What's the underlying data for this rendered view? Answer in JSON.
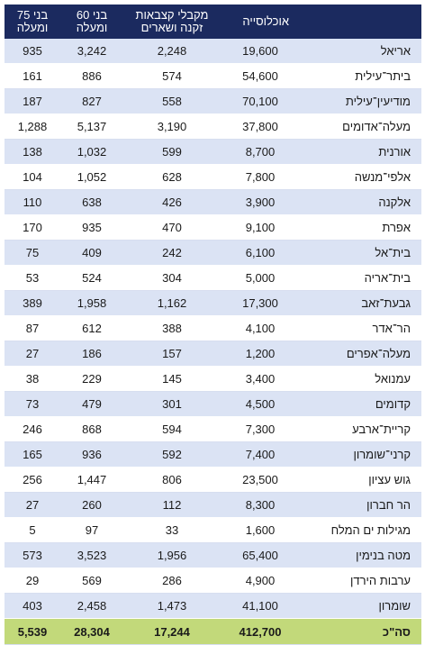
{
  "headers": {
    "population": "אוכלוסייה",
    "pension_l1": "מקבלי קצבאות",
    "pension_l2": "זקנה ושארים",
    "age60_l1": "בני 60",
    "age60_l2": "ומעלה",
    "age75_l1": "בני 75",
    "age75_l2": "ומעלה"
  },
  "rows": [
    {
      "name": "אריאל",
      "population": "19,600",
      "pension": "2,248",
      "age60": "3,242",
      "age75": "935"
    },
    {
      "name": "ביתר־עילית",
      "population": "54,600",
      "pension": "574",
      "age60": "886",
      "age75": "161"
    },
    {
      "name": "מודיעין־עילית",
      "population": "70,100",
      "pension": "558",
      "age60": "827",
      "age75": "187"
    },
    {
      "name": "מעלה־אדומים",
      "population": "37,800",
      "pension": "3,190",
      "age60": "5,137",
      "age75": "1,288"
    },
    {
      "name": "אורנית",
      "population": "8,700",
      "pension": "599",
      "age60": "1,032",
      "age75": "138"
    },
    {
      "name": "אלפי־מנשה",
      "population": "7,800",
      "pension": "628",
      "age60": "1,052",
      "age75": "104"
    },
    {
      "name": "אלקנה",
      "population": "3,900",
      "pension": "426",
      "age60": "638",
      "age75": "110"
    },
    {
      "name": "אפרת",
      "population": "9,100",
      "pension": "470",
      "age60": "935",
      "age75": "170"
    },
    {
      "name": "בית־אל",
      "population": "6,100",
      "pension": "242",
      "age60": "409",
      "age75": "75"
    },
    {
      "name": "בית־אריה",
      "population": "5,000",
      "pension": "304",
      "age60": "524",
      "age75": "53"
    },
    {
      "name": "גבעת־זאב",
      "population": "17,300",
      "pension": "1,162",
      "age60": "1,958",
      "age75": "389"
    },
    {
      "name": "הר־אדר",
      "population": "4,100",
      "pension": "388",
      "age60": "612",
      "age75": "87"
    },
    {
      "name": "מעלה־אפרים",
      "population": "1,200",
      "pension": "157",
      "age60": "186",
      "age75": "27"
    },
    {
      "name": "עמנואל",
      "population": "3,400",
      "pension": "145",
      "age60": "229",
      "age75": "38"
    },
    {
      "name": "קדומים",
      "population": "4,500",
      "pension": "301",
      "age60": "479",
      "age75": "73"
    },
    {
      "name": "קריית־ארבע",
      "population": "7,300",
      "pension": "594",
      "age60": "868",
      "age75": "246"
    },
    {
      "name": "קרני־שומרון",
      "population": "7,400",
      "pension": "592",
      "age60": "936",
      "age75": "165"
    },
    {
      "name": "גוש עציון",
      "population": "23,500",
      "pension": "806",
      "age60": "1,447",
      "age75": "256"
    },
    {
      "name": "הר חברון",
      "population": "8,300",
      "pension": "112",
      "age60": "260",
      "age75": "27"
    },
    {
      "name": "מגילות ים המלח",
      "population": "1,600",
      "pension": "33",
      "age60": "97",
      "age75": "5"
    },
    {
      "name": "מטה בנימין",
      "population": "65,400",
      "pension": "1,956",
      "age60": "3,523",
      "age75": "573"
    },
    {
      "name": "ערבות הירדן",
      "population": "4,900",
      "pension": "286",
      "age60": "569",
      "age75": "29"
    },
    {
      "name": "שומרון",
      "population": "41,100",
      "pension": "1,473",
      "age60": "2,458",
      "age75": "403"
    }
  ],
  "total": {
    "name": "סה\"כ",
    "population": "412,700",
    "pension": "17,244",
    "age60": "28,304",
    "age75": "5,539"
  },
  "colors": {
    "header_bg": "#1b2a5f",
    "row_stripe": "#dbe3f4",
    "total_bg": "#c2d97a"
  }
}
